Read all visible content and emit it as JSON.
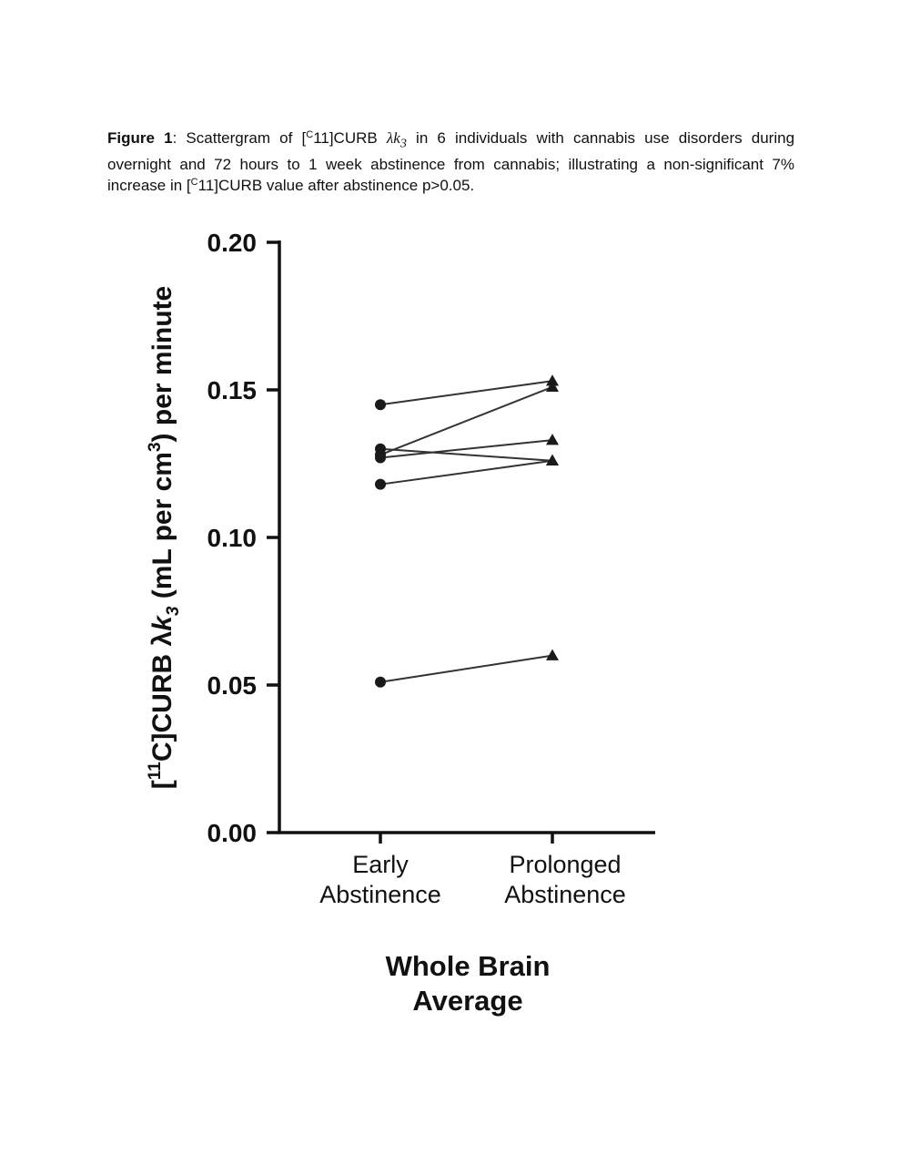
{
  "caption": {
    "label": "Figure 1",
    "text1": ": Scattergram of [",
    "sup1": "C",
    "text2": "11]CURB ",
    "lambda": "λk",
    "sub": "3",
    "text3": " in 6 individuals with cannabis use disorders during overnight and 72 hours to 1 week abstinence from cannabis; illustrating a non-significant 7% increase in [",
    "sup2": "C",
    "text4": "11]CURB value after abstinence p>0.05."
  },
  "chart_data": {
    "type": "scatter",
    "subtype": "paired-lines",
    "categories": [
      "Early\nAbstinence",
      "Prolonged\nAbstinence"
    ],
    "category_lines": [
      [
        "Early",
        "Abstinence"
      ],
      [
        "Prolonged",
        "Abstinence"
      ]
    ],
    "xlabel_lines": [
      "Whole Brain",
      "Average"
    ],
    "ylabel": "[11C]CURB λk3 (mL per cm3) per minute",
    "ylabel_parts": {
      "open": "[",
      "sup1": "11",
      "main": "C]CURB λ",
      "k": "k",
      "sub": "3",
      "mid": " (mL per cm",
      "sup2": "3",
      "end": ") per minute"
    },
    "ylim": [
      0,
      0.2
    ],
    "yticks": [
      "0.00",
      "0.05",
      "0.10",
      "0.15",
      "0.20"
    ],
    "marker_early": "circle",
    "marker_prolonged": "triangle",
    "pairs": [
      {
        "early": 0.145,
        "prolonged": 0.153
      },
      {
        "early": 0.13,
        "prolonged": 0.126
      },
      {
        "early": 0.128,
        "prolonged": 0.151
      },
      {
        "early": 0.127,
        "prolonged": 0.133
      },
      {
        "early": 0.118,
        "prolonged": 0.126
      },
      {
        "early": 0.051,
        "prolonged": 0.06
      }
    ],
    "grid": false,
    "legend": "none",
    "colors": {
      "marks": "#1a1a1a",
      "lines": "#333333",
      "axes": "#111111"
    }
  }
}
